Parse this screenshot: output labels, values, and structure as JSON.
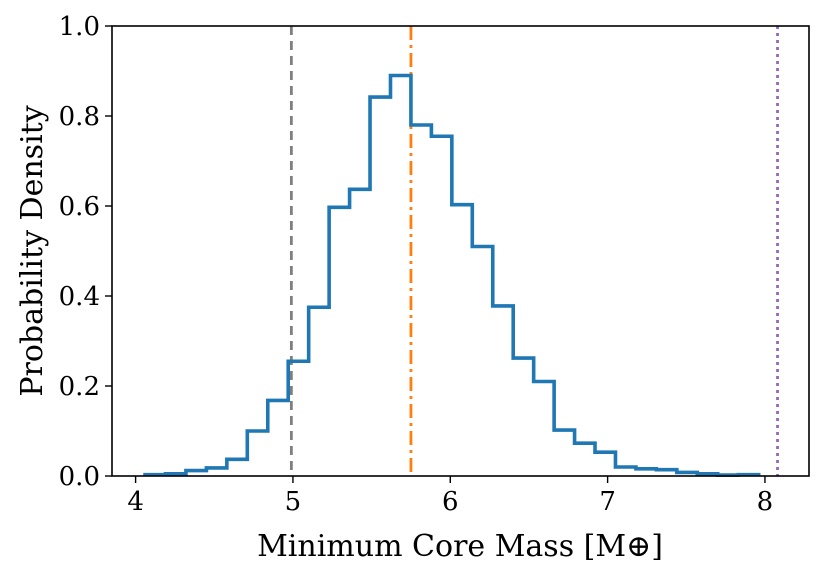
{
  "chart_data": {
    "type": "histogram",
    "title": "",
    "xlabel": "Minimum Core Mass [M⊕]",
    "ylabel": "Probability Density",
    "xlim": [
      3.85,
      8.28
    ],
    "ylim": [
      0,
      1.0
    ],
    "x_ticks": [
      "4",
      "5",
      "6",
      "7",
      "8"
    ],
    "y_ticks": [
      "0.0",
      "0.2",
      "0.4",
      "0.6",
      "0.8",
      "1.0"
    ],
    "series": [
      {
        "name": "distribution",
        "color": "#1f77b4",
        "bin_edges": [
          4.06,
          4.19,
          4.32,
          4.45,
          4.58,
          4.71,
          4.84,
          4.97,
          5.1,
          5.23,
          5.36,
          5.49,
          5.62,
          5.75,
          5.88,
          6.01,
          6.14,
          6.27,
          6.4,
          6.53,
          6.66,
          6.79,
          6.92,
          7.05,
          7.18,
          7.31,
          7.44,
          7.57,
          7.7,
          7.83,
          7.96
        ],
        "densities": [
          0.003,
          0.005,
          0.012,
          0.018,
          0.037,
          0.1,
          0.168,
          0.255,
          0.375,
          0.597,
          0.637,
          0.842,
          0.89,
          0.78,
          0.755,
          0.603,
          0.51,
          0.378,
          0.262,
          0.21,
          0.102,
          0.073,
          0.053,
          0.02,
          0.016,
          0.014,
          0.008,
          0.005,
          0.002,
          0.003
        ]
      }
    ],
    "vlines": [
      {
        "name": "gray-dashed",
        "x": 4.99,
        "color": "#7f7f7f",
        "style": "dashed"
      },
      {
        "name": "orange-dashdot",
        "x": 5.75,
        "color": "#ff7f0e",
        "style": "dashdot"
      },
      {
        "name": "purple-dotted",
        "x": 8.08,
        "color": "#9467bd",
        "style": "dotted"
      }
    ]
  }
}
